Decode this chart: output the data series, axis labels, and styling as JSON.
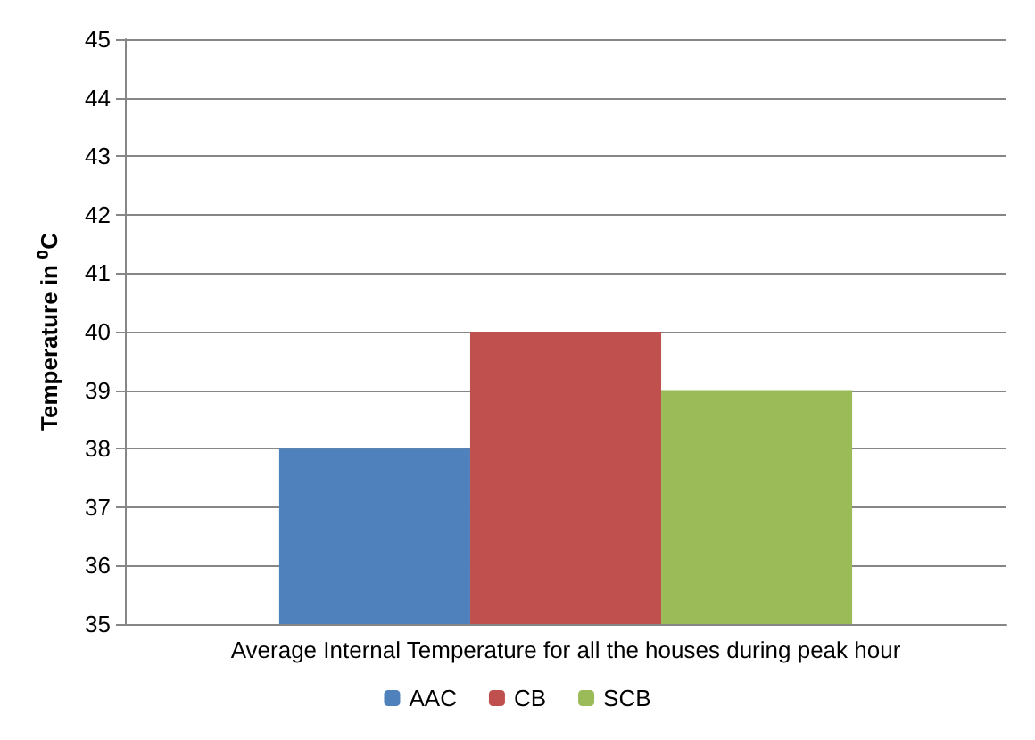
{
  "chart_data": {
    "type": "bar",
    "ylabel": "Temperature in ⁰C",
    "categories": [
      "Average Internal Temperature for all the houses during peak hour"
    ],
    "series": [
      {
        "name": "AAC",
        "color": "#4f81bd",
        "values": [
          38
        ]
      },
      {
        "name": "CB",
        "color": "#c0504d",
        "values": [
          40
        ]
      },
      {
        "name": "SCB",
        "color": "#9bbb59",
        "values": [
          39
        ]
      }
    ],
    "ylim": [
      35,
      45
    ],
    "yticks": [
      35,
      36,
      37,
      38,
      39,
      40,
      41,
      42,
      43,
      44,
      45
    ],
    "grid": "y",
    "legend": "bottom"
  }
}
